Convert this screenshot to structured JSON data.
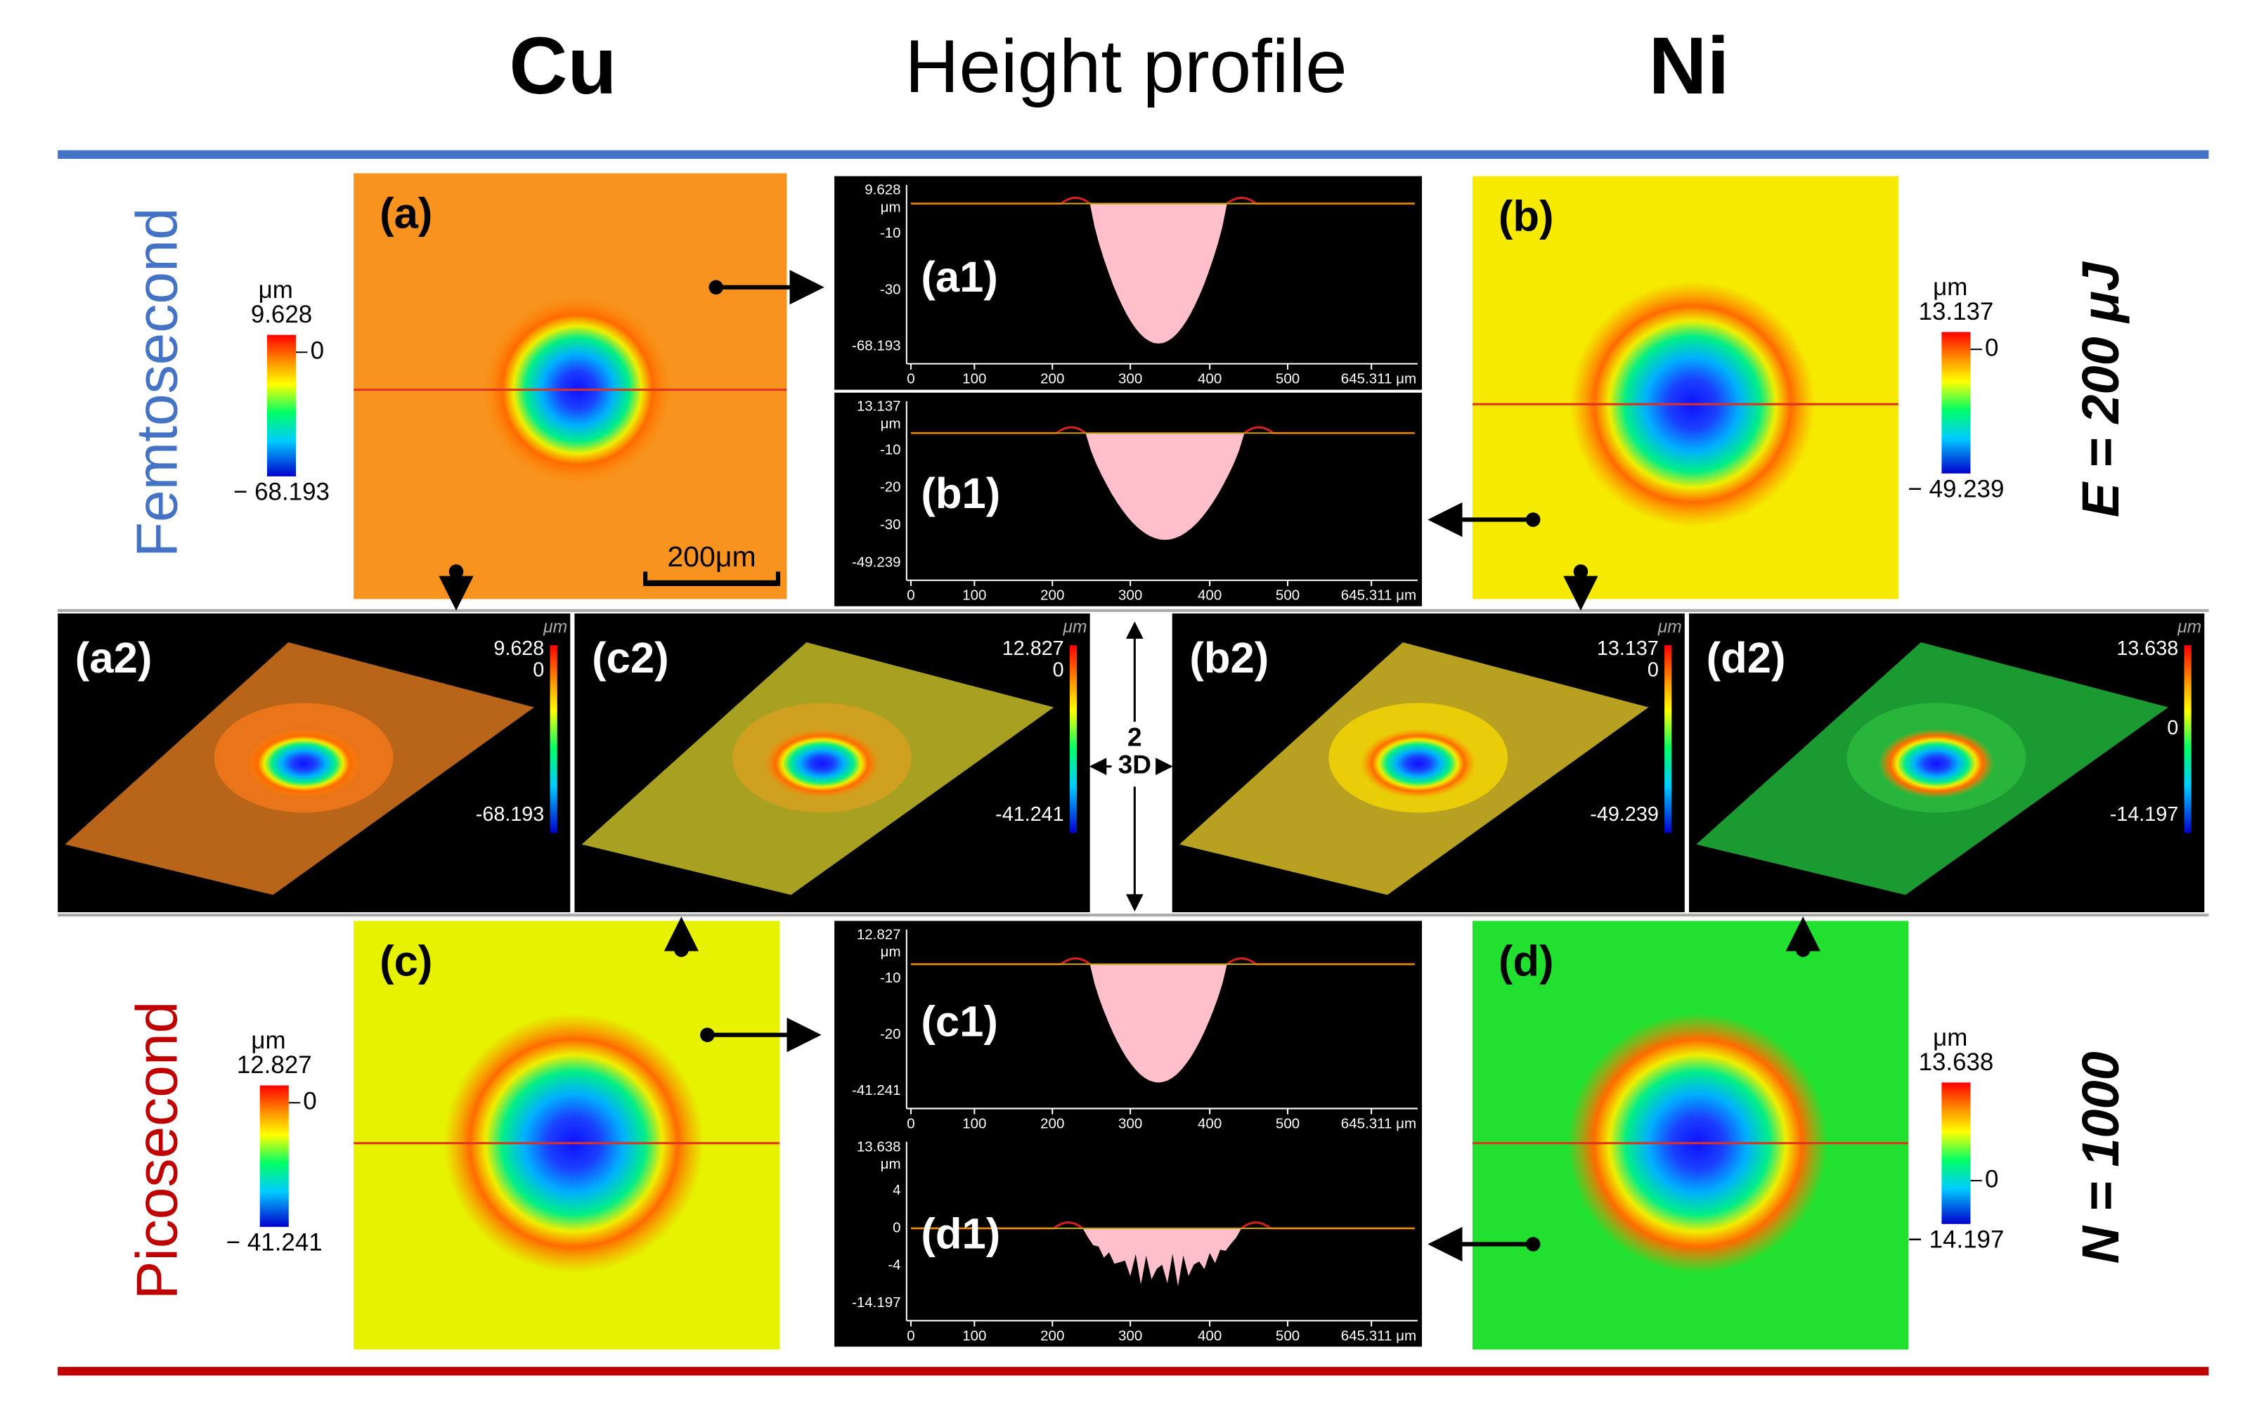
{
  "headers": [
    "Cu",
    "Height profile",
    "Ni"
  ],
  "rows": [
    {
      "label": "Femtosecond",
      "param": "E = 200 μJ"
    },
    {
      "label": "Picosecond",
      "param": "N = 1000"
    }
  ],
  "maps": [
    {
      "label": "(a)",
      "unit": "μm",
      "max": "9.628",
      "zero": "0",
      "min": "− 68.193"
    },
    {
      "label": "(b)",
      "unit": "μm",
      "max": "13.137",
      "zero": "0",
      "min": "− 49.239"
    },
    {
      "label": "(c)",
      "unit": "μm",
      "max": "12.827",
      "zero": "0",
      "min": "− 41.241"
    },
    {
      "label": "(d)",
      "unit": "μm",
      "max": "13.638",
      "zero": "0",
      "min": "− 14.197"
    }
  ],
  "scale_bar": "200μm",
  "profiles": [
    {
      "label": "(a1)",
      "y_labels": [
        "9.628",
        "μm",
        "-10",
        "-30",
        "-68.193"
      ]
    },
    {
      "label": "(b1)",
      "y_labels": [
        "13.137",
        "μm",
        "-10",
        "-20",
        "-30",
        "-49.239"
      ]
    },
    {
      "label": "(c1)",
      "y_labels": [
        "12.827",
        "μm",
        "-10",
        "-20",
        "-41.241"
      ]
    },
    {
      "label": "(d1)",
      "y_labels": [
        "13.638",
        "μm",
        "4",
        "0",
        "-4",
        "-14.197"
      ]
    }
  ],
  "profile_x_ticks": [
    "0",
    "100",
    "200",
    "300",
    "400",
    "500",
    "645.311 μm"
  ],
  "views_3d": [
    {
      "label": "(a2)",
      "unit": "μm",
      "max": "9.628",
      "zero": "0",
      "min": "-68.193"
    },
    {
      "label": "(c2)",
      "unit": "μm",
      "max": "12.827",
      "zero": "0",
      "min": "-41.241"
    },
    {
      "label": "(b2)",
      "unit": "μm",
      "max": "13.137",
      "zero": "0",
      "min": "-49.239"
    },
    {
      "label": "(d2)",
      "unit": "μm",
      "max": "13.638",
      "zero": "0",
      "min": "-14.197"
    }
  ],
  "center": [
    "2",
    "3D"
  ]
}
